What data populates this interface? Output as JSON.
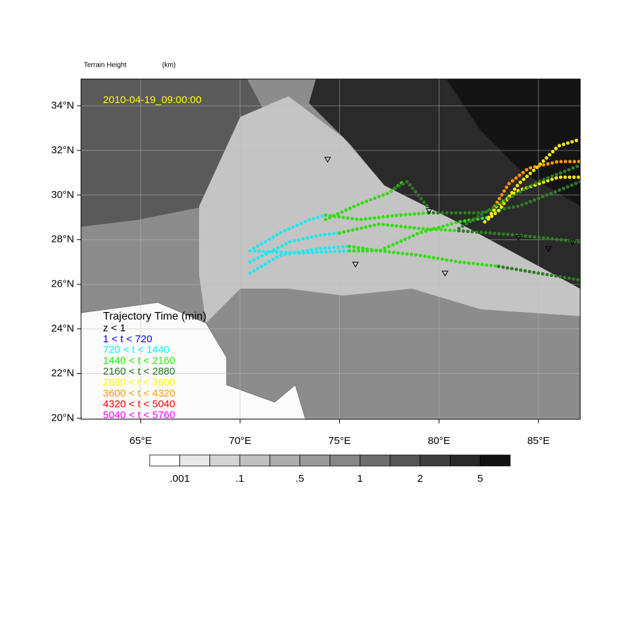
{
  "chart_data": {
    "type": "trajectory-map",
    "title": "Terrain Height",
    "units": "(km)",
    "timestamp": "2010-04-19_09:00:00",
    "xlim": [
      62,
      87.1
    ],
    "ylim": [
      19.95,
      35.2
    ],
    "xticks": [
      {
        "value": 65,
        "label": "65°E"
      },
      {
        "value": 70,
        "label": "70°E"
      },
      {
        "value": 75,
        "label": "75°E"
      },
      {
        "value": 80,
        "label": "80°E"
      },
      {
        "value": 85,
        "label": "85°E"
      }
    ],
    "yticks": [
      {
        "value": 20,
        "label": "20°N"
      },
      {
        "value": 22,
        "label": "22°N"
      },
      {
        "value": 24,
        "label": "24°N"
      },
      {
        "value": 26,
        "label": "26°N"
      },
      {
        "value": 28,
        "label": "28°N"
      },
      {
        "value": 30,
        "label": "30°N"
      },
      {
        "value": 32,
        "label": "32°N"
      },
      {
        "value": 34,
        "label": "34°N"
      }
    ],
    "grid": true,
    "legend": {
      "title": "Trajectory Time (min)",
      "entries": [
        {
          "label": "z < 1",
          "color": "#000000"
        },
        {
          "label": "1 < t < 720",
          "color": "#0000ff"
        },
        {
          "label": "720 < t < 1440",
          "color": "#00ffff"
        },
        {
          "label": "1440 < t < 2160",
          "color": "#22ee00"
        },
        {
          "label": "2160 < t < 2880",
          "color": "#207820"
        },
        {
          "label": "2880 < t < 3600",
          "color": "#ffff00"
        },
        {
          "label": "3600 < t < 4320",
          "color": "#ff9900"
        },
        {
          "label": "4320 < t < 5040",
          "color": "#ff0000"
        },
        {
          "label": "5040 < t < 5760",
          "color": "#ff00ff"
        }
      ]
    },
    "colorbar": {
      "colors": [
        "#ffffff",
        "#e8e8e8",
        "#d4d4d4",
        "#c0c0c0",
        "#adadad",
        "#9a9a9a",
        "#868686",
        "#6e6e6e",
        "#565656",
        "#3f3f3f",
        "#292929",
        "#111111"
      ],
      "labels": [
        ".001",
        ".1",
        ".5",
        "1",
        "2",
        "5"
      ]
    },
    "stations": {
      "lon": [
        74.4,
        79.5,
        75.8,
        80.3,
        84.0,
        85.5,
        86.7
      ],
      "lat": [
        31.6,
        29.3,
        26.9,
        26.5,
        28.1,
        27.6,
        27.9
      ]
    },
    "series": [
      {
        "color": "#22e6ee",
        "lon": [
          70.5,
          72,
          73.5,
          74.3
        ],
        "lat": [
          27.5,
          28.3,
          28.9,
          29.1
        ]
      },
      {
        "color": "#33dd11",
        "lon": [
          74.3,
          76,
          78,
          79.5
        ],
        "lat": [
          29.1,
          28.9,
          29.1,
          29.2
        ]
      },
      {
        "color": "#2e7d22",
        "lon": [
          79.5,
          82,
          84,
          86,
          87.1
        ],
        "lat": [
          29.2,
          29.2,
          29.5,
          30.2,
          30.6
        ]
      },
      {
        "color": "#22e6ee",
        "lon": [
          70.5,
          72.5,
          74,
          75
        ],
        "lat": [
          27,
          27.9,
          28.2,
          28.3
        ]
      },
      {
        "color": "#33dd11",
        "lon": [
          75,
          77,
          79,
          81
        ],
        "lat": [
          28.3,
          28.7,
          28.5,
          28.4
        ]
      },
      {
        "color": "#2e7d22",
        "lon": [
          81,
          84,
          87.1
        ],
        "lat": [
          28.4,
          28.2,
          27.9
        ]
      },
      {
        "color": "#22e6ee",
        "lon": [
          70.5,
          72,
          74,
          75.5
        ],
        "lat": [
          26.5,
          27.3,
          27.6,
          27.7
        ]
      },
      {
        "color": "#33dd11",
        "lon": [
          75.5,
          77,
          79,
          81,
          83
        ],
        "lat": [
          27.7,
          27.5,
          27.3,
          27.0,
          26.8
        ]
      },
      {
        "color": "#2e7d22",
        "lon": [
          83,
          85,
          87
        ],
        "lat": [
          26.8,
          26.5,
          26.2
        ]
      },
      {
        "color": "#22e6ee",
        "lon": [
          70.5,
          73,
          75.5
        ],
        "lat": [
          27.5,
          27.4,
          27.5
        ]
      },
      {
        "color": "#33dd11",
        "lon": [
          75.5,
          77,
          79,
          81,
          82.5
        ],
        "lat": [
          27.5,
          27.5,
          28.3,
          28.8,
          29.0
        ]
      },
      {
        "color": "#ffee00",
        "lon": [
          82.5,
          82.9,
          84,
          86,
          87.1
        ],
        "lat": [
          29.0,
          29.5,
          30.2,
          30.8,
          30.8
        ]
      },
      {
        "color": "#33dd11",
        "lon": [
          74.3,
          76,
          77.5,
          78.2
        ],
        "lat": [
          28.9,
          29.6,
          30.1,
          30.6
        ]
      },
      {
        "color": "#2e7d22",
        "lon": [
          77.8,
          78.4,
          79.5
        ],
        "lat": [
          30.3,
          30.6,
          29.4
        ]
      },
      {
        "color": "#ffee00",
        "lon": [
          82.3,
          83,
          84,
          85,
          86,
          87.1
        ],
        "lat": [
          28.8,
          29.3,
          30.5,
          31.3,
          32.2,
          32.5
        ]
      },
      {
        "color": "#ff9900",
        "lon": [
          82.8,
          83.5,
          84.5,
          86,
          87.1
        ],
        "lat": [
          29.5,
          30.5,
          31.2,
          31.5,
          31.5
        ]
      },
      {
        "color": "#2e7d22",
        "lon": [
          81,
          83,
          85,
          87
        ],
        "lat": [
          28.5,
          29.6,
          30.6,
          31.3
        ]
      }
    ]
  }
}
